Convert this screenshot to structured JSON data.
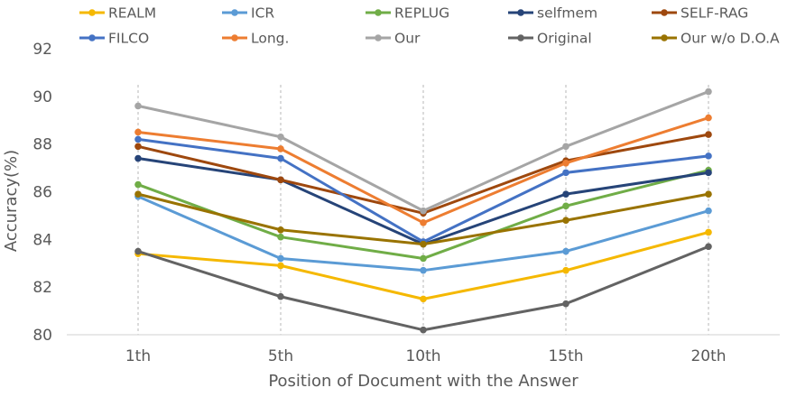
{
  "chart_data": {
    "type": "line",
    "xlabel": "Position of Document with the Answer",
    "ylabel": "Accuracy(%)",
    "categories": [
      "1th",
      "5th",
      "10th",
      "15th",
      "20th"
    ],
    "ylim": [
      80,
      92
    ],
    "yticks": [
      80,
      82,
      84,
      86,
      88,
      90,
      92
    ],
    "grid": "vertical dashed at categories",
    "legend": "top",
    "series": [
      {
        "name": "REALM",
        "color": "#F5B800",
        "values": [
          83.4,
          82.9,
          81.5,
          82.7,
          84.3
        ]
      },
      {
        "name": "ICR",
        "color": "#5B9BD5",
        "values": [
          85.8,
          83.2,
          82.7,
          83.5,
          85.2
        ]
      },
      {
        "name": "REPLUG",
        "color": "#70AD47",
        "values": [
          86.3,
          84.1,
          83.2,
          85.4,
          86.9
        ]
      },
      {
        "name": "selfmem",
        "color": "#264478",
        "values": [
          87.4,
          86.5,
          83.8,
          85.9,
          86.8
        ]
      },
      {
        "name": "SELF-RAG",
        "color": "#9E480E",
        "values": [
          87.9,
          86.5,
          85.1,
          87.3,
          88.4
        ]
      },
      {
        "name": "FILCO",
        "color": "#4472C4",
        "values": [
          88.2,
          87.4,
          83.9,
          86.8,
          87.5
        ]
      },
      {
        "name": "Long.",
        "color": "#ED7D31",
        "values": [
          88.5,
          87.8,
          84.7,
          87.2,
          89.1
        ]
      },
      {
        "name": "Our",
        "color": "#A5A5A5",
        "values": [
          89.6,
          88.3,
          85.2,
          87.9,
          90.2
        ]
      },
      {
        "name": "Original",
        "color": "#636363",
        "values": [
          83.5,
          81.6,
          80.2,
          81.3,
          83.7
        ]
      },
      {
        "name": "Our w/o D.O.A",
        "color": "#997300",
        "values": [
          85.9,
          84.4,
          83.8,
          84.8,
          85.9
        ]
      }
    ]
  }
}
